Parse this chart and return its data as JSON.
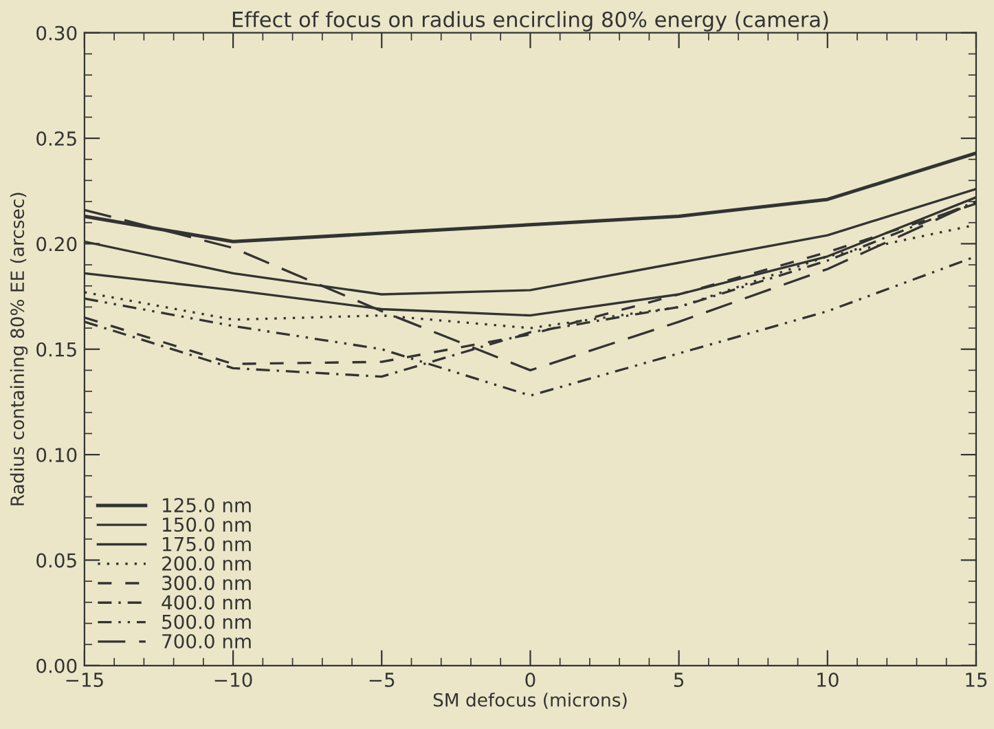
{
  "chart_data": {
    "type": "line",
    "title": "Effect of focus on radius encircling 80% energy (camera)",
    "xlabel": "SM defocus (microns)",
    "ylabel": "Radius containing 80% EE (arcsec)",
    "x": [
      -15,
      -10,
      -5,
      0,
      5,
      10,
      15
    ],
    "xlim": [
      -15,
      15
    ],
    "xticks": [
      {
        "value": -15,
        "label": "−15"
      },
      {
        "value": -10,
        "label": "−10"
      },
      {
        "value": -5,
        "label": "−5"
      },
      0,
      5,
      10,
      15
    ],
    "ylim": [
      0,
      0.3
    ],
    "yticks": [
      {
        "value": 0,
        "label": "0.00"
      },
      {
        "value": 0.05,
        "label": "0.05"
      },
      {
        "value": 0.1,
        "label": "0.10"
      },
      {
        "value": 0.15,
        "label": "0.15"
      },
      {
        "value": 0.2,
        "label": "0.20"
      },
      {
        "value": 0.25,
        "label": "0.25"
      },
      {
        "value": 0.3,
        "label": "0.30"
      }
    ],
    "grid": false,
    "legend": "bottom left",
    "marker": "none",
    "series": [
      {
        "name": "125.0 nm",
        "color": "#333333",
        "line_style": "solid",
        "values": [
          0.213,
          0.201,
          0.205,
          0.209,
          0.213,
          0.221,
          0.243
        ]
      },
      {
        "name": "150.0 nm",
        "color": "#333333",
        "line_style": "solid",
        "values": [
          0.201,
          0.186,
          0.176,
          0.178,
          0.191,
          0.204,
          0.226
        ]
      },
      {
        "name": "175.0 nm",
        "color": "#333333",
        "line_style": "solid",
        "values": [
          0.186,
          0.178,
          0.169,
          0.166,
          0.176,
          0.194,
          0.222
        ]
      },
      {
        "name": "200.0 nm",
        "color": "#333333",
        "line_style": "dotted",
        "values": [
          0.177,
          0.164,
          0.166,
          0.16,
          0.17,
          0.194,
          0.209
        ]
      },
      {
        "name": "300.0 nm",
        "color": "#333333",
        "line_style": "dashed",
        "values": [
          0.165,
          0.143,
          0.144,
          0.157,
          0.176,
          0.196,
          0.219
        ]
      },
      {
        "name": "400.0 nm",
        "color": "#333333",
        "line_style": "dashdot",
        "values": [
          0.163,
          0.141,
          0.137,
          0.158,
          0.17,
          0.192,
          0.22
        ]
      },
      {
        "name": "500.0 nm",
        "color": "#333333",
        "line_style": "dashdotdot",
        "values": [
          0.174,
          0.161,
          0.15,
          0.128,
          0.148,
          0.168,
          0.194
        ]
      },
      {
        "name": "700.0 nm",
        "color": "#333333",
        "line_style": "longdash",
        "values": [
          0.216,
          0.198,
          0.168,
          0.14,
          0.163,
          0.188,
          0.22
        ]
      }
    ]
  }
}
